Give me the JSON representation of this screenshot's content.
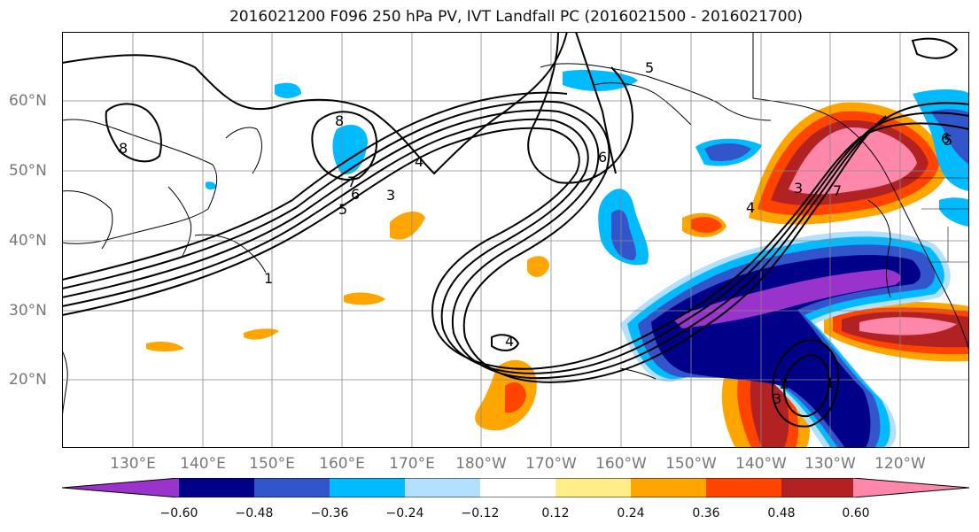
{
  "title": "2016021200 F096 250 hPa PV, IVT Landfall PC (2016021500 - 2016021700)",
  "map": {
    "lat_labels": [
      "60°N",
      "50°N",
      "40°N",
      "30°N",
      "20°N"
    ],
    "lon_labels": [
      "130°E",
      "140°E",
      "150°E",
      "160°E",
      "170°E",
      "180°W",
      "170°W",
      "160°W",
      "150°W",
      "140°W",
      "130°W",
      "120°W"
    ],
    "contour_labels": [
      "5",
      "6",
      "8",
      "7",
      "4",
      "3",
      "6",
      "5",
      "1",
      "3",
      "4",
      "5",
      "6",
      "7",
      "4",
      "8",
      "3",
      "1",
      "2"
    ]
  },
  "colorbar": {
    "colors": [
      "#9933cc",
      "#000088",
      "#3355cc",
      "#00bbff",
      "#b3e0ff",
      "#ffffff",
      "#ffee88",
      "#ffa500",
      "#ff4400",
      "#b22222",
      "#ff88aa"
    ],
    "tick_labels": [
      "−0.60",
      "−0.48",
      "−0.36",
      "−0.24",
      "−0.12",
      "0.12",
      "0.24",
      "0.36",
      "0.48",
      "0.60"
    ]
  }
}
